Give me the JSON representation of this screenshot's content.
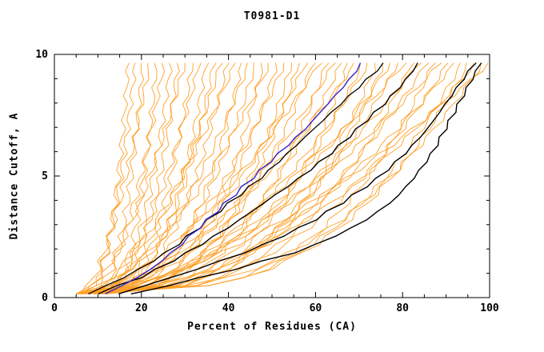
{
  "chart_data": {
    "type": "line",
    "title": "T0981-D1",
    "xlabel": "Percent of Residues (CA)",
    "ylabel": "Distance Cutoff, A",
    "xlim": [
      0,
      100
    ],
    "ylim": [
      0,
      10
    ],
    "x_major_ticks": [
      0,
      20,
      40,
      60,
      80,
      100
    ],
    "x_minor_step": 5,
    "y_major_ticks": [
      0,
      5,
      10
    ],
    "y_minor_step": 1,
    "grid": false,
    "legend": "none",
    "colors": {
      "ensemble": "#ffa028",
      "highlight": "#3322cc",
      "emphasis": "#000000",
      "frame": "#000000"
    },
    "highlight_series": [
      {
        "name": "model-blue",
        "color": "#3322cc",
        "width": 1.4,
        "x_at_y": [
          10,
          21,
          28,
          34,
          40,
          46,
          52,
          58,
          63,
          68,
          72
        ]
      },
      {
        "name": "model-black-1",
        "color": "#000000",
        "width": 1.4,
        "x_at_y": [
          14,
          38,
          58,
          70,
          78,
          83,
          87,
          90,
          93,
          96,
          99
        ]
      },
      {
        "name": "model-black-2",
        "color": "#000000",
        "width": 1.4,
        "x_at_y": [
          12,
          30,
          46,
          58,
          67,
          75,
          81,
          86,
          90,
          94,
          98
        ]
      },
      {
        "name": "model-black-3",
        "color": "#000000",
        "width": 1.4,
        "x_at_y": [
          8,
          22,
          32,
          41,
          49,
          57,
          64,
          70,
          76,
          81,
          85
        ]
      },
      {
        "name": "model-black-4",
        "color": "#000000",
        "width": 1.3,
        "x_at_y": [
          6,
          18,
          27,
          34,
          41,
          48,
          54,
          60,
          66,
          72,
          78
        ]
      }
    ],
    "ensemble_series_format": "[x_percent_at_y0, x_percent_at_top, shape_exponent]",
    "ensemble_series": [
      [
        5,
        17,
        0.32
      ],
      [
        7,
        18.6,
        0.5
      ],
      [
        9,
        20.3,
        0.4
      ],
      [
        6,
        21.9,
        0.62
      ],
      [
        10,
        23.5,
        0.36
      ],
      [
        8,
        25.2,
        0.55
      ],
      [
        11,
        26.8,
        0.45
      ],
      [
        6,
        28.4,
        0.3
      ],
      [
        5,
        30,
        0.58
      ],
      [
        12,
        31.7,
        0.42
      ],
      [
        7,
        33.3,
        0.5
      ],
      [
        9,
        34.9,
        0.34
      ],
      [
        5,
        36.6,
        0.32
      ],
      [
        7,
        38.2,
        0.5
      ],
      [
        9,
        39.8,
        0.4
      ],
      [
        6,
        41.5,
        0.62
      ],
      [
        10,
        43.1,
        0.36
      ],
      [
        8,
        44.7,
        0.55
      ],
      [
        11,
        46.3,
        0.45
      ],
      [
        6,
        48,
        0.3
      ],
      [
        5,
        49.6,
        0.58
      ],
      [
        12,
        51.2,
        0.42
      ],
      [
        7,
        52.9,
        0.5
      ],
      [
        9,
        54.5,
        0.34
      ],
      [
        5,
        56.1,
        0.32
      ],
      [
        7,
        57.8,
        0.5
      ],
      [
        9,
        59.4,
        0.4
      ],
      [
        6,
        61,
        0.62
      ],
      [
        10,
        62.6,
        0.36
      ],
      [
        8,
        64.3,
        0.55
      ],
      [
        11,
        65.9,
        0.45
      ],
      [
        6,
        67.5,
        0.3
      ],
      [
        5,
        69.2,
        0.58
      ],
      [
        12,
        70.8,
        0.42
      ],
      [
        7,
        72.4,
        0.5
      ],
      [
        9,
        74.1,
        0.34
      ],
      [
        5,
        75.7,
        0.32
      ],
      [
        7,
        77.3,
        0.5
      ],
      [
        9,
        78.9,
        0.4
      ],
      [
        6,
        80.6,
        0.62
      ],
      [
        10,
        82.2,
        0.36
      ],
      [
        8,
        83.8,
        0.55
      ],
      [
        11,
        85.5,
        0.45
      ],
      [
        6,
        87.1,
        0.3
      ],
      [
        5,
        88.7,
        0.58
      ],
      [
        12,
        90.4,
        0.42
      ],
      [
        7,
        92,
        0.5
      ],
      [
        9,
        93.6,
        0.34
      ],
      [
        5,
        95.2,
        0.32
      ],
      [
        7,
        96.9,
        0.5
      ],
      [
        9,
        98.5,
        0.4
      ],
      [
        6,
        100,
        0.62
      ]
    ],
    "y_curve_start": 0.15,
    "y_curve_end": 9.65
  }
}
